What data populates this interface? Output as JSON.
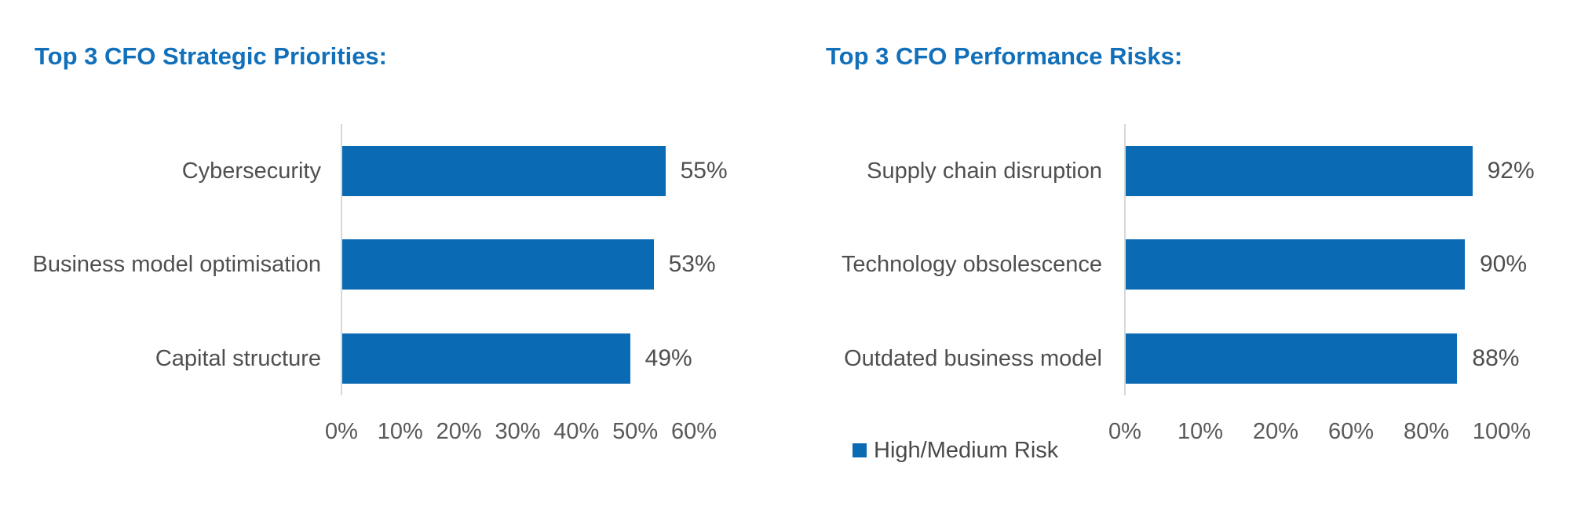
{
  "page": {
    "background": "#FFFFFF"
  },
  "colors": {
    "bar_blue": "#0A6AB4",
    "title_blue": "#1270BA",
    "category_text": "#4F4F4F",
    "value_text": "#4F4F4F",
    "tick_text": "#595959",
    "legend_text": "#4A4A4A",
    "axis_line": "#D8D8D8"
  },
  "chart_data": [
    {
      "type": "bar",
      "orientation": "horizontal",
      "title": "Top 3 CFO Strategic Priorities:",
      "categories": [
        "Cybersecurity",
        "Business model optimisation",
        "Capital structure"
      ],
      "values": [
        55,
        53,
        49
      ],
      "value_labels": [
        "55%",
        "53%",
        "49%"
      ],
      "x_axis": {
        "range": [
          0,
          60
        ],
        "tick_labels": [
          "0%",
          "10%",
          "20%",
          "30%",
          "40%",
          "50%",
          "60%"
        ]
      },
      "grid": false,
      "bar_color": "#0A6AB4",
      "legend": null
    },
    {
      "type": "bar",
      "orientation": "horizontal",
      "title": "Top 3 CFO Performance Risks:",
      "categories": [
        "Supply chain disruption",
        "Technology obsolescence",
        "Outdated business model"
      ],
      "values": [
        92,
        90,
        88
      ],
      "value_labels": [
        "92%",
        "90%",
        "88%"
      ],
      "x_axis": {
        "range": [
          0,
          100
        ],
        "tick_labels": [
          "0%",
          "10%",
          "20%",
          "60%",
          "80%",
          "100%"
        ]
      },
      "grid": false,
      "bar_color": "#0A6AB4",
      "legend": {
        "label": "High/Medium Risk",
        "position": "bottom-left"
      }
    }
  ]
}
